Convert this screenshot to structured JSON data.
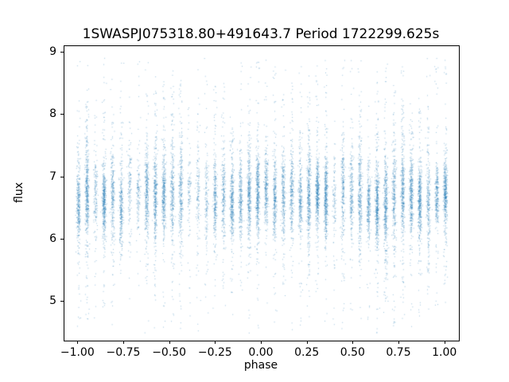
{
  "chart_data": {
    "type": "scatter",
    "title": "1SWASPJ075318.80+491643.7 Period 1722299.625s",
    "xlabel": "phase",
    "ylabel": "flux",
    "xlim": [
      -1.075,
      1.075
    ],
    "ylim": [
      4.38,
      9.1
    ],
    "x_ticks": [
      -1.0,
      -0.75,
      -0.5,
      -0.25,
      0.0,
      0.25,
      0.5,
      0.75,
      1.0
    ],
    "x_tick_labels": [
      "−1.00",
      "−0.75",
      "−0.50",
      "−0.25",
      "0.00",
      "0.25",
      "0.50",
      "0.75",
      "1.00"
    ],
    "y_ticks": [
      5,
      6,
      7,
      8,
      9
    ],
    "y_tick_labels": [
      "5",
      "6",
      "7",
      "8",
      "9"
    ],
    "grid": false,
    "legend": null,
    "marker_color": "#1f77b4",
    "marker_alpha": 0.45,
    "marker_size": 1,
    "description": "Folded light curve: ~44 dense vertical stripes of points evenly spaced in phase from -1.0 to 1.0, flux concentrated around 6.7 (core roughly 6.1-7.3) with sparse tails reaching up to ~8.9 and down to ~4.5.",
    "point_generator": {
      "seed": 20240753,
      "stripe_start": -1.0,
      "stripe_spacing": 0.0465,
      "n_stripes": 44,
      "phase_jitter_sd": 0.005,
      "points_per_stripe_min": 260,
      "points_per_stripe_range": 240,
      "sparse_stripe_probability": 0.08,
      "flux_center": 6.68,
      "flux_center_jitter": 0.12,
      "flux_sd_min": 0.24,
      "flux_sd_range": 0.18,
      "flux_min": 4.5,
      "flux_max": 8.92
    }
  }
}
